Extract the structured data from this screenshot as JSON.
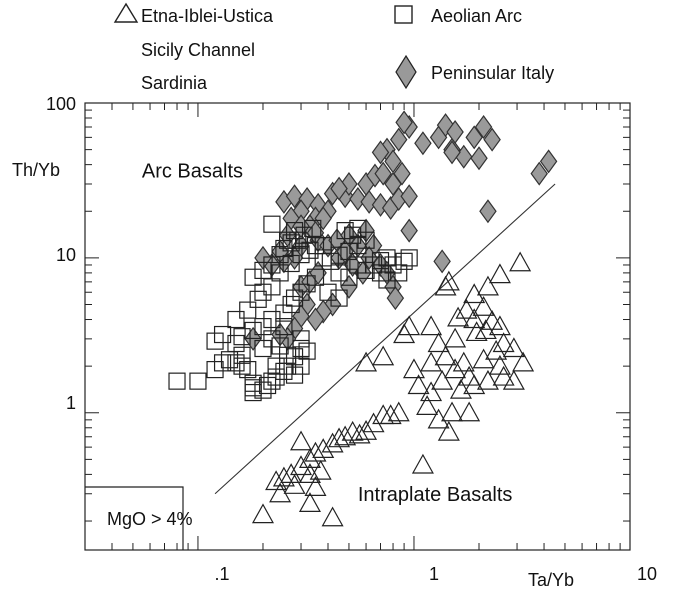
{
  "chart_data": {
    "type": "scatter",
    "xlabel": "Ta/Yb",
    "ylabel": "Th/Yb",
    "xscale": "log",
    "yscale": "log",
    "xlim": [
      0.03,
      10
    ],
    "ylim": [
      0.13,
      100
    ],
    "x_tick_labels": [
      {
        "value": 0.1,
        "label": ".1"
      },
      {
        "value": 1,
        "label": "1"
      },
      {
        "value": 10,
        "label": "10"
      }
    ],
    "y_tick_labels": [
      {
        "value": 1,
        "label": "1"
      },
      {
        "value": 10,
        "label": "10"
      },
      {
        "value": 100,
        "label": "100"
      }
    ],
    "legend": {
      "placement": "top",
      "entries": [
        {
          "marker": "triangle",
          "lines": [
            "Etna-Iblei-Ustica",
            "Sicily Channel",
            "Sardinia"
          ]
        },
        {
          "marker": "square",
          "lines": [
            "Aeolian Arc"
          ]
        },
        {
          "marker": "diamond",
          "lines": [
            "Peninsular Italy"
          ]
        }
      ]
    },
    "annotations": [
      {
        "text": "Arc Basalts",
        "x": 0.055,
        "y": 33
      },
      {
        "text": "Intraplate Basalts",
        "x": 0.55,
        "y": 0.27
      }
    ],
    "boxed_note": "MgO > 4%",
    "divider_line": {
      "from": [
        0.12,
        0.3
      ],
      "to": [
        4.5,
        30
      ]
    },
    "series": [
      {
        "marker": "triangle",
        "points": [
          [
            3.1,
            9.3
          ],
          [
            2.5,
            7.8
          ],
          [
            2.2,
            6.5
          ],
          [
            1.9,
            5.8
          ],
          [
            2.1,
            4.8
          ],
          [
            1.75,
            4.6
          ],
          [
            1.6,
            4.1
          ],
          [
            1.9,
            4.0
          ],
          [
            2.3,
            3.9
          ],
          [
            2.5,
            3.6
          ],
          [
            2.15,
            3.4
          ],
          [
            1.95,
            3.3
          ],
          [
            1.55,
            3.0
          ],
          [
            1.2,
            3.6
          ],
          [
            0.95,
            3.6
          ],
          [
            1.3,
            2.8
          ],
          [
            2.6,
            2.8
          ],
          [
            2.4,
            2.5
          ],
          [
            2.9,
            2.6
          ],
          [
            3.2,
            2.1
          ],
          [
            2.5,
            2.0
          ],
          [
            2.1,
            2.2
          ],
          [
            1.7,
            2.1
          ],
          [
            1.55,
            1.9
          ],
          [
            1.4,
            2.3
          ],
          [
            1.2,
            2.1
          ],
          [
            1.0,
            1.9
          ],
          [
            1.8,
            1.7
          ],
          [
            2.2,
            1.6
          ],
          [
            2.6,
            1.7
          ],
          [
            2.9,
            1.6
          ],
          [
            1.35,
            1.6
          ],
          [
            1.05,
            1.5
          ],
          [
            1.2,
            1.35
          ],
          [
            1.65,
            1.4
          ],
          [
            1.9,
            1.5
          ],
          [
            1.15,
            1.1
          ],
          [
            1.5,
            1.0
          ],
          [
            1.8,
            1.0
          ],
          [
            1.3,
            0.9
          ],
          [
            1.45,
            0.75
          ],
          [
            0.85,
            1.0
          ],
          [
            0.78,
            0.96
          ],
          [
            0.65,
            0.85
          ],
          [
            0.52,
            0.75
          ],
          [
            0.48,
            0.7
          ],
          [
            0.45,
            0.68
          ],
          [
            0.42,
            0.63
          ],
          [
            0.38,
            0.58
          ],
          [
            0.35,
            0.55
          ],
          [
            0.33,
            0.5
          ],
          [
            0.3,
            0.45
          ],
          [
            0.27,
            0.4
          ],
          [
            0.33,
            0.4
          ],
          [
            0.37,
            0.42
          ],
          [
            0.25,
            0.38
          ],
          [
            0.23,
            0.36
          ],
          [
            0.28,
            0.34
          ],
          [
            0.35,
            0.33
          ],
          [
            0.24,
            0.3
          ],
          [
            0.2,
            0.22
          ],
          [
            0.33,
            0.26
          ],
          [
            0.42,
            0.21
          ],
          [
            1.1,
            0.46
          ],
          [
            0.3,
            0.65
          ],
          [
            0.72,
            2.3
          ],
          [
            0.6,
            2.1
          ],
          [
            1.4,
            6.5
          ],
          [
            1.45,
            7.0
          ],
          [
            0.9,
            3.2
          ],
          [
            0.72,
            0.96
          ],
          [
            0.56,
            0.72
          ],
          [
            0.6,
            0.76
          ]
        ]
      },
      {
        "marker": "square",
        "points": [
          [
            0.08,
            1.6
          ],
          [
            0.1,
            1.6
          ],
          [
            0.12,
            1.9
          ],
          [
            0.13,
            2.1
          ],
          [
            0.14,
            2.2
          ],
          [
            0.15,
            2.1
          ],
          [
            0.16,
            2.0
          ],
          [
            0.17,
            1.9
          ],
          [
            0.18,
            1.55
          ],
          [
            0.18,
            1.45
          ],
          [
            0.18,
            1.35
          ],
          [
            0.2,
            1.4
          ],
          [
            0.21,
            1.5
          ],
          [
            0.22,
            1.6
          ],
          [
            0.23,
            1.7
          ],
          [
            0.25,
            1.85
          ],
          [
            0.26,
            2.0
          ],
          [
            0.28,
            2.3
          ],
          [
            0.3,
            2.6
          ],
          [
            0.15,
            2.8
          ],
          [
            0.16,
            3.1
          ],
          [
            0.18,
            3.4
          ],
          [
            0.2,
            3.6
          ],
          [
            0.22,
            4.0
          ],
          [
            0.25,
            4.4
          ],
          [
            0.27,
            5.0
          ],
          [
            0.28,
            5.5
          ],
          [
            0.3,
            6.0
          ],
          [
            0.32,
            6.8
          ],
          [
            0.35,
            7.5
          ],
          [
            0.12,
            2.9
          ],
          [
            0.13,
            3.2
          ],
          [
            0.15,
            4.0
          ],
          [
            0.17,
            4.6
          ],
          [
            0.19,
            5.4
          ],
          [
            0.2,
            6.0
          ],
          [
            0.22,
            6.5
          ],
          [
            0.18,
            7.5
          ],
          [
            0.2,
            8.3
          ],
          [
            0.22,
            9.0
          ],
          [
            0.24,
            10.5
          ],
          [
            0.25,
            11.5
          ],
          [
            0.27,
            12.5
          ],
          [
            0.29,
            13.0
          ],
          [
            0.31,
            14.0
          ],
          [
            0.28,
            15.0
          ],
          [
            0.26,
            13.0
          ],
          [
            0.34,
            15.5
          ],
          [
            0.22,
            16.5
          ],
          [
            0.24,
            8.0
          ],
          [
            0.27,
            9.2
          ],
          [
            0.3,
            10.5
          ],
          [
            0.33,
            11.2
          ],
          [
            0.38,
            12.0
          ],
          [
            0.41,
            9.5
          ],
          [
            0.45,
            10.4
          ],
          [
            0.5,
            11.0
          ],
          [
            0.55,
            12.0
          ],
          [
            0.6,
            13.0
          ],
          [
            0.52,
            14.0
          ],
          [
            0.48,
            15.0
          ],
          [
            0.55,
            15.5
          ],
          [
            0.65,
            9.0
          ],
          [
            0.7,
            9.6
          ],
          [
            0.75,
            10.0
          ],
          [
            0.8,
            9.0
          ],
          [
            0.85,
            8.0
          ],
          [
            0.9,
            9.5
          ],
          [
            0.95,
            10.0
          ],
          [
            0.45,
            8.0
          ],
          [
            0.5,
            7.5
          ],
          [
            0.55,
            9.0
          ],
          [
            0.6,
            8.3
          ],
          [
            0.7,
            8.0
          ],
          [
            0.75,
            7.2
          ],
          [
            0.4,
            6.0
          ],
          [
            0.45,
            5.5
          ],
          [
            0.3,
            3.0
          ],
          [
            0.32,
            2.5
          ],
          [
            0.25,
            3.6
          ],
          [
            0.22,
            3.0
          ],
          [
            0.2,
            2.6
          ],
          [
            0.24,
            2.7
          ],
          [
            0.28,
            1.75
          ],
          [
            0.35,
            12.0
          ],
          [
            0.38,
            10.0
          ],
          [
            0.16,
            2.35
          ],
          [
            0.23,
            2.0
          ],
          [
            0.26,
            2.35
          ],
          [
            0.3,
            2.0
          ]
        ]
      },
      {
        "marker": "diamond",
        "points": [
          [
            0.25,
            23
          ],
          [
            0.28,
            25
          ],
          [
            0.32,
            24
          ],
          [
            0.36,
            22
          ],
          [
            0.4,
            20
          ],
          [
            0.3,
            20
          ],
          [
            0.27,
            18
          ],
          [
            0.35,
            18
          ],
          [
            0.42,
            26
          ],
          [
            0.48,
            25
          ],
          [
            0.55,
            24
          ],
          [
            0.62,
            23
          ],
          [
            0.7,
            22
          ],
          [
            0.78,
            21
          ],
          [
            0.85,
            24
          ],
          [
            0.95,
            25
          ],
          [
            0.6,
            30
          ],
          [
            0.66,
            34
          ],
          [
            0.72,
            35
          ],
          [
            0.8,
            30
          ],
          [
            0.88,
            35
          ],
          [
            0.75,
            50
          ],
          [
            0.85,
            58
          ],
          [
            0.95,
            70
          ],
          [
            1.1,
            55
          ],
          [
            1.3,
            60
          ],
          [
            1.5,
            50
          ],
          [
            1.7,
            45
          ],
          [
            1.9,
            60
          ],
          [
            2.1,
            70
          ],
          [
            2.3,
            58
          ],
          [
            1.4,
            72
          ],
          [
            1.55,
            65
          ],
          [
            0.9,
            75
          ],
          [
            0.8,
            42
          ],
          [
            0.7,
            48
          ],
          [
            0.5,
            30
          ],
          [
            0.45,
            28
          ],
          [
            0.38,
            18
          ],
          [
            0.33,
            16
          ],
          [
            0.3,
            12
          ],
          [
            0.28,
            10
          ],
          [
            0.25,
            9.5
          ],
          [
            0.22,
            9
          ],
          [
            0.24,
            11
          ],
          [
            0.26,
            14
          ],
          [
            0.3,
            16
          ],
          [
            0.36,
            13
          ],
          [
            0.4,
            12
          ],
          [
            0.44,
            13
          ],
          [
            0.5,
            14
          ],
          [
            0.55,
            12
          ],
          [
            0.6,
            15
          ],
          [
            0.65,
            12
          ],
          [
            0.45,
            10
          ],
          [
            0.48,
            11
          ],
          [
            0.52,
            9
          ],
          [
            0.58,
            8
          ],
          [
            0.62,
            10
          ],
          [
            0.7,
            9
          ],
          [
            0.75,
            8
          ],
          [
            0.8,
            6.5
          ],
          [
            0.82,
            5.5
          ],
          [
            0.42,
            5
          ],
          [
            0.38,
            4.5
          ],
          [
            0.35,
            4
          ],
          [
            0.32,
            5
          ],
          [
            0.3,
            4.2
          ],
          [
            0.28,
            3.5
          ],
          [
            0.26,
            3
          ],
          [
            0.24,
            3.2
          ],
          [
            0.3,
            6.5
          ],
          [
            0.33,
            7
          ],
          [
            0.36,
            8
          ],
          [
            0.2,
            10
          ],
          [
            0.18,
            3.0
          ],
          [
            0.5,
            6.5
          ],
          [
            2.2,
            20
          ],
          [
            1.35,
            9.5
          ],
          [
            4.2,
            42
          ],
          [
            3.8,
            35
          ],
          [
            0.35,
            14.5
          ],
          [
            0.95,
            15
          ],
          [
            1.5,
            48
          ],
          [
            2.0,
            44
          ]
        ]
      }
    ]
  }
}
